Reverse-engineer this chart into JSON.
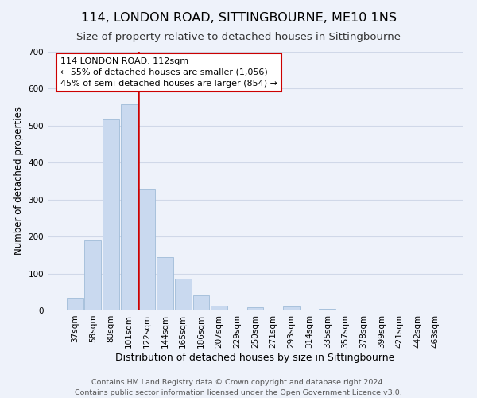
{
  "title": "114, LONDON ROAD, SITTINGBOURNE, ME10 1NS",
  "subtitle": "Size of property relative to detached houses in Sittingbourne",
  "xlabel": "Distribution of detached houses by size in Sittingbourne",
  "ylabel": "Number of detached properties",
  "bar_labels": [
    "37sqm",
    "58sqm",
    "80sqm",
    "101sqm",
    "122sqm",
    "144sqm",
    "165sqm",
    "186sqm",
    "207sqm",
    "229sqm",
    "250sqm",
    "271sqm",
    "293sqm",
    "314sqm",
    "335sqm",
    "357sqm",
    "378sqm",
    "399sqm",
    "421sqm",
    "442sqm",
    "463sqm"
  ],
  "bar_values": [
    32,
    190,
    518,
    558,
    328,
    145,
    87,
    40,
    14,
    0,
    8,
    0,
    10,
    0,
    5,
    0,
    0,
    0,
    0,
    0,
    0
  ],
  "bar_color": "#c9d9ef",
  "bar_edge_color": "#a0bcd8",
  "vline_color": "#cc0000",
  "ylim": [
    0,
    700
  ],
  "yticks": [
    0,
    100,
    200,
    300,
    400,
    500,
    600,
    700
  ],
  "annotation_title": "114 LONDON ROAD: 112sqm",
  "annotation_line1": "← 55% of detached houses are smaller (1,056)",
  "annotation_line2": "45% of semi-detached houses are larger (854) →",
  "annotation_box_color": "#ffffff",
  "annotation_box_edge": "#cc0000",
  "footer_line1": "Contains HM Land Registry data © Crown copyright and database right 2024.",
  "footer_line2": "Contains public sector information licensed under the Open Government Licence v3.0.",
  "background_color": "#eef2fa",
  "grid_color": "#d0d8e8",
  "title_fontsize": 11.5,
  "subtitle_fontsize": 9.5,
  "xlabel_fontsize": 9,
  "ylabel_fontsize": 8.5,
  "tick_fontsize": 7.5,
  "annotation_fontsize": 8,
  "footer_fontsize": 6.8
}
